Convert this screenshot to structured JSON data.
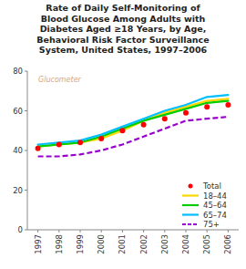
{
  "chart_data": {
    "type": "line",
    "title": "Rate of Daily Self-Monitoring of\nBlood Glucose Among Adults with\nDiabetes Aged ≥18 Years, by Age,\nBehavioral Risk Factor Surveillance\nSystem, United States, 1997–2006",
    "annotations": [
      "Glucometer"
    ],
    "x": [
      1997,
      1998,
      1999,
      2000,
      2001,
      2002,
      2003,
      2004,
      2005,
      2006
    ],
    "xlim": [
      1996.5,
      2006.5
    ],
    "xticks": [
      1997,
      1998,
      1999,
      2000,
      2001,
      2002,
      2003,
      2004,
      2005,
      2006
    ],
    "ylim": [
      0,
      80
    ],
    "yticks": [
      0,
      20,
      40,
      60,
      80
    ],
    "grid": false,
    "legend": "lower right",
    "series": [
      {
        "name": "Total",
        "color": "#ff0000",
        "marker": "circle",
        "line_style": "none",
        "values": [
          41,
          43,
          44,
          46,
          50,
          53,
          56,
          59,
          62,
          63
        ]
      },
      {
        "name": "18–44",
        "color": "#ffd700",
        "line_style": "solid",
        "values": [
          42,
          43,
          44,
          46,
          50,
          55,
          59,
          62,
          65,
          66
        ]
      },
      {
        "name": "45–64",
        "color": "#00cc00",
        "line_style": "solid",
        "values": [
          42,
          43,
          44,
          47,
          51,
          55,
          58,
          61,
          64,
          65
        ]
      },
      {
        "name": "65–74",
        "color": "#00bfff",
        "line_style": "solid",
        "values": [
          43,
          44,
          45,
          48,
          52,
          56,
          60,
          63,
          67,
          68
        ]
      },
      {
        "name": "75+",
        "color": "#9900cc",
        "line_style": "dashed",
        "values": [
          37,
          37,
          38,
          40,
          43,
          47,
          51,
          55,
          56,
          57
        ]
      }
    ]
  }
}
